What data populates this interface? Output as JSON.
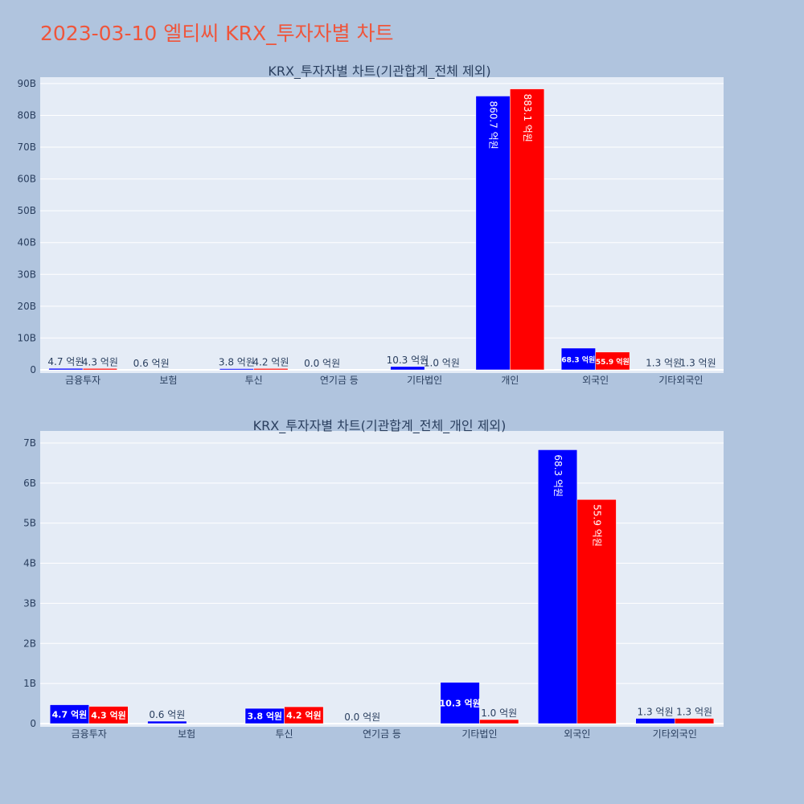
{
  "title": "2023-03-10 엘티씨 KRX_투자자별 차트",
  "colors": {
    "buy": "#0000ff",
    "sell": "#ff0000",
    "plot_bg": "#e5ecf6",
    "page_bg": "#b0c4de",
    "title": "#ef553b"
  },
  "chart_data": [
    {
      "type": "bar",
      "title": "KRX_투자자별 차트(기관합계_전체 제외)",
      "categories": [
        "금융투자",
        "보험",
        "투신",
        "연기금 등",
        "기타법인",
        "개인",
        "외국인",
        "기타외국인"
      ],
      "ylim": [
        0,
        92000000000
      ],
      "yticks": [
        0,
        10000000000,
        20000000000,
        30000000000,
        40000000000,
        50000000000,
        60000000000,
        70000000000,
        80000000000,
        90000000000
      ],
      "yticklabels": [
        "0",
        "10B",
        "20B",
        "30B",
        "40B",
        "50B",
        "60B",
        "70B",
        "80B",
        "90B"
      ],
      "grid": true,
      "series": [
        {
          "values": [
            470000000,
            60000000,
            380000000,
            0,
            1030000000,
            86070000000,
            6830000000,
            130000000
          ],
          "labels": [
            "4.7 억원",
            "0.6 억원",
            "3.8 억원",
            "0.0 억원",
            "10.3 억원",
            "860.7 억원",
            "68.3 억원",
            "1.3 억원"
          ]
        },
        {
          "values": [
            430000000,
            null,
            420000000,
            null,
            100000000,
            88310000000,
            5590000000,
            130000000
          ],
          "labels": [
            "4.3 억원",
            "",
            "4.2 억원",
            "",
            "1.0 억원",
            "883.1 억원",
            "55.9 억원",
            "1.3 억원"
          ]
        }
      ]
    },
    {
      "type": "bar",
      "title": "KRX_투자자별 차트(기관합계_전체_개인 제외)",
      "categories": [
        "금융투자",
        "보험",
        "투신",
        "연기금 등",
        "기타법인",
        "외국인",
        "기타외국인"
      ],
      "ylim": [
        0,
        7300000000
      ],
      "yticks": [
        0,
        1000000000,
        2000000000,
        3000000000,
        4000000000,
        5000000000,
        6000000000,
        7000000000
      ],
      "yticklabels": [
        "0",
        "1B",
        "2B",
        "3B",
        "4B",
        "5B",
        "6B",
        "7B"
      ],
      "grid": true,
      "series": [
        {
          "values": [
            470000000,
            60000000,
            380000000,
            0,
            1030000000,
            6830000000,
            130000000
          ],
          "labels": [
            "4.7 억원",
            "0.6 억원",
            "3.8 억원",
            "0.0 억원",
            "10.3 억원",
            "68.3 억원",
            "1.3 억원"
          ]
        },
        {
          "values": [
            430000000,
            null,
            420000000,
            null,
            100000000,
            5590000000,
            130000000
          ],
          "labels": [
            "4.3 억원",
            "",
            "4.2 억원",
            "",
            "1.0 억원",
            "55.9 억원",
            "1.3 억원"
          ]
        }
      ]
    }
  ]
}
